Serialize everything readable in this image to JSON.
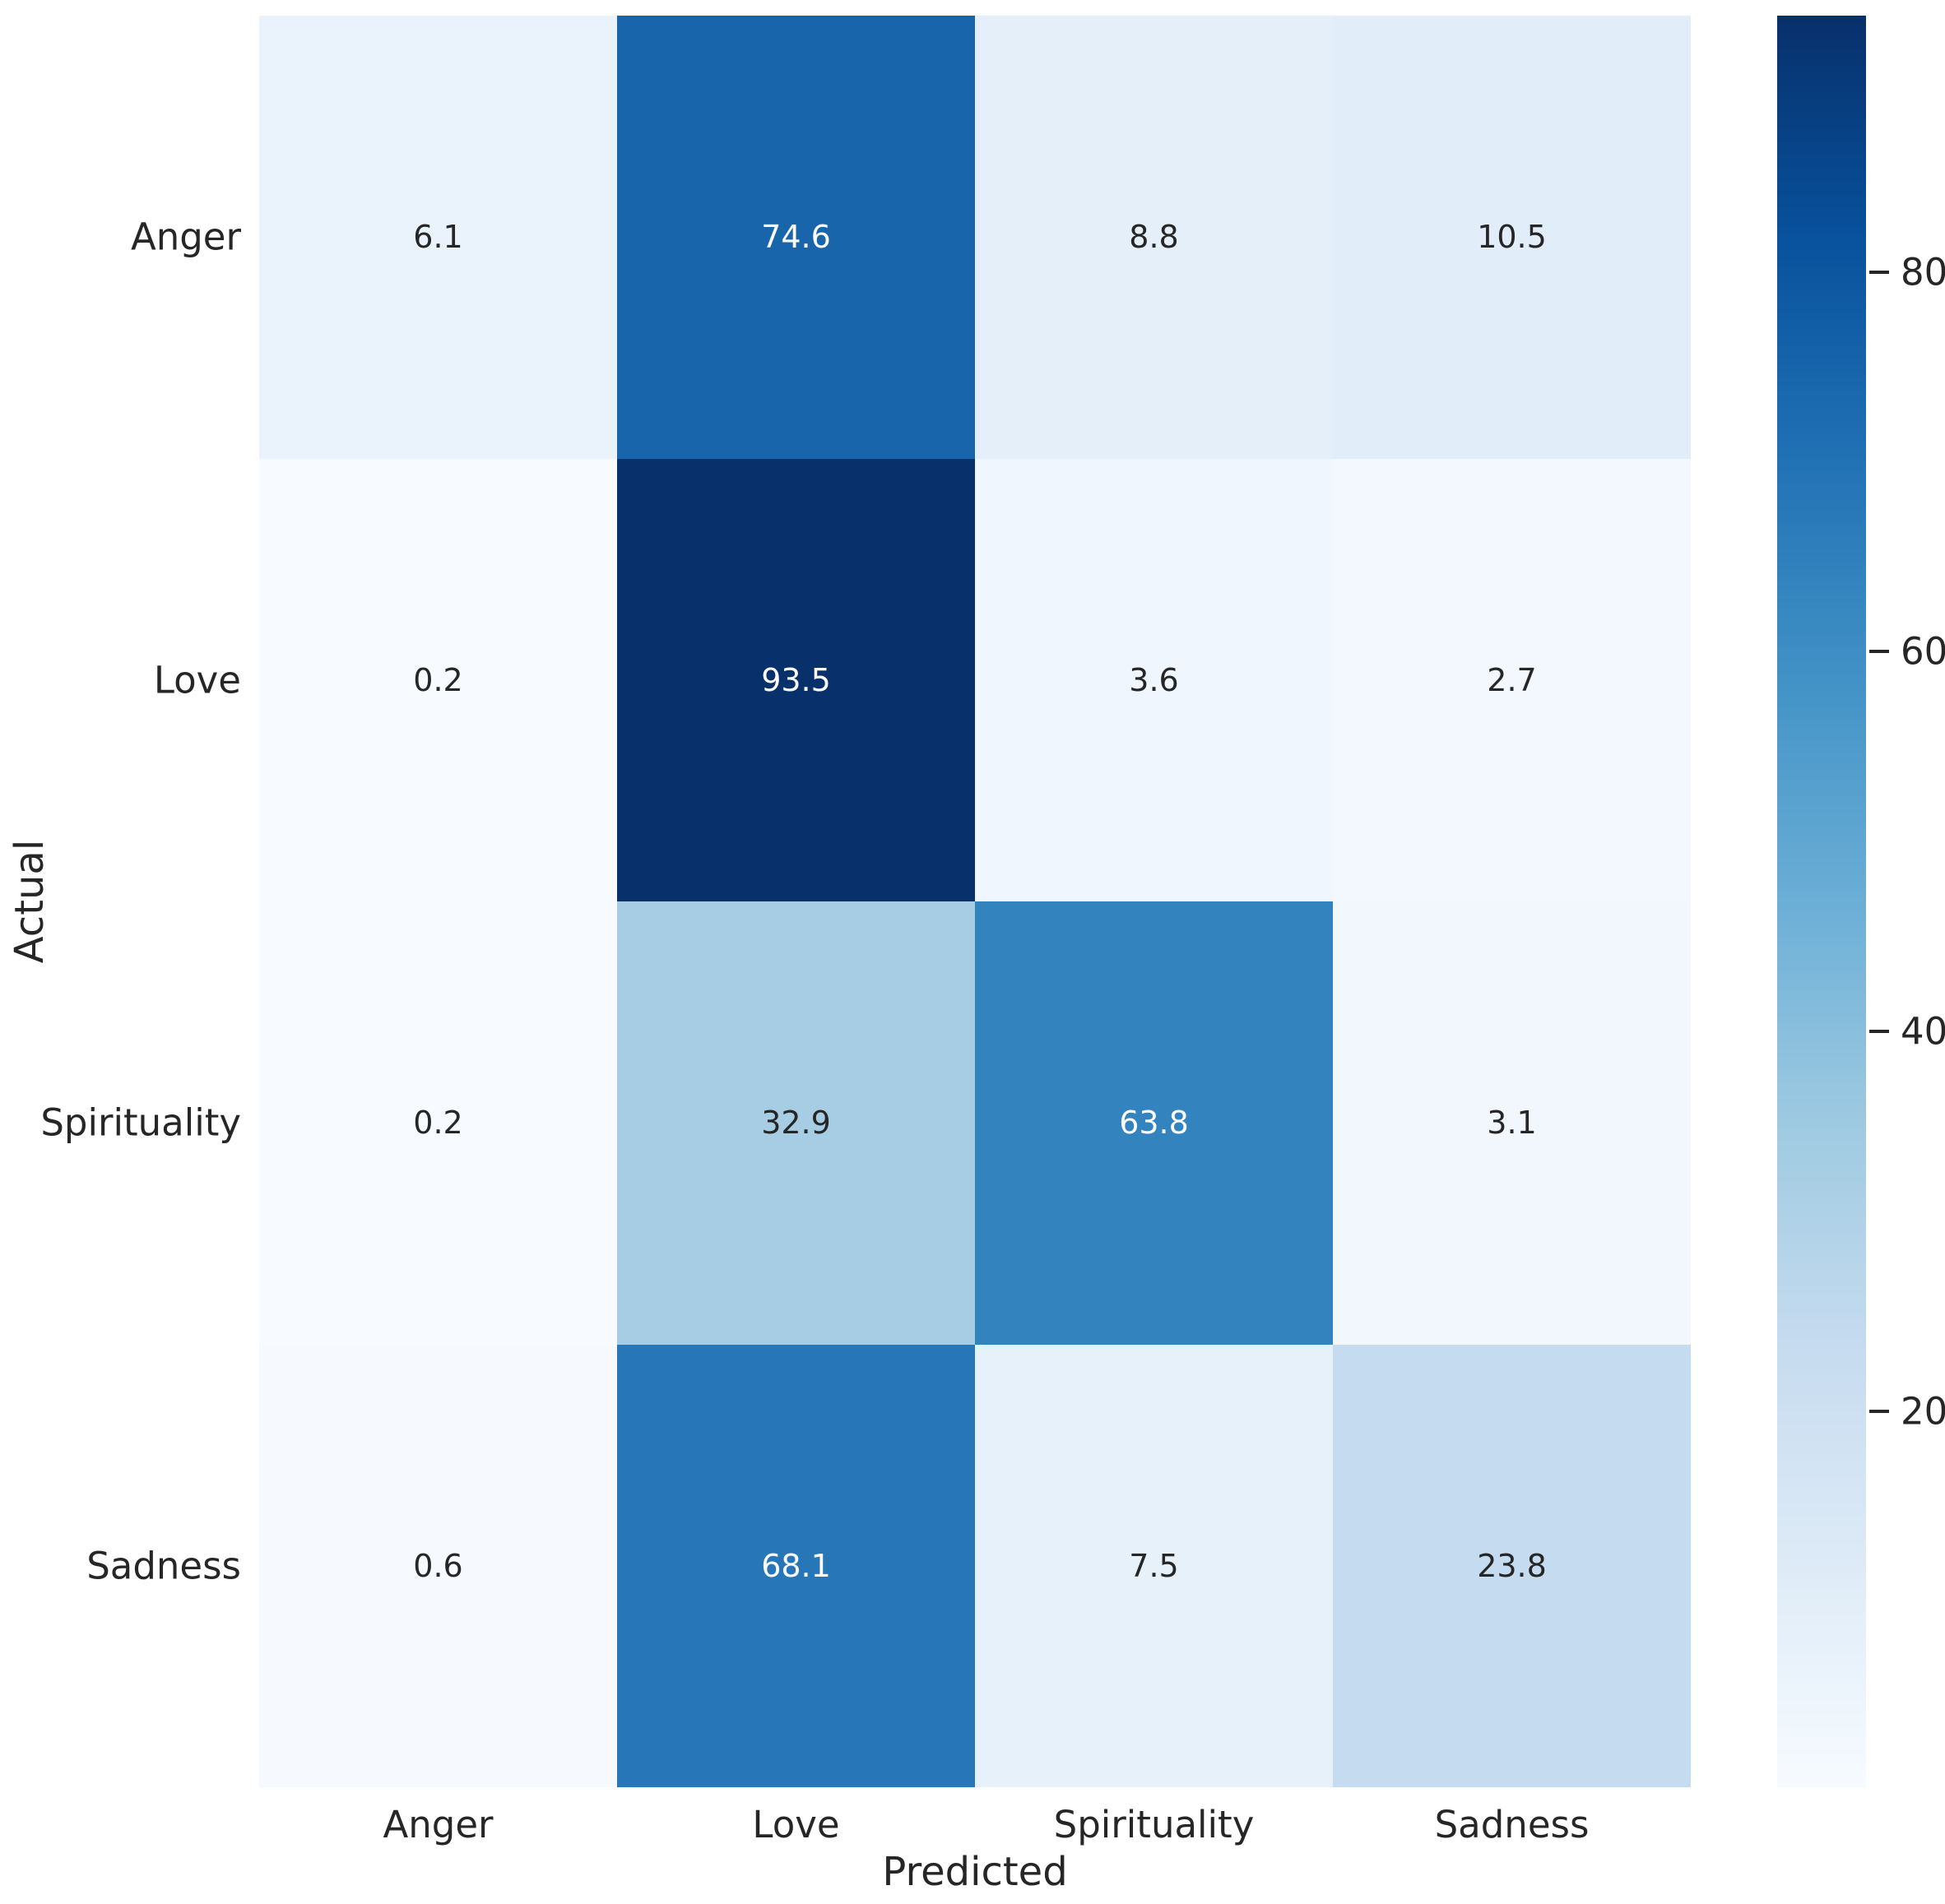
{
  "chart_data": {
    "type": "heatmap",
    "xlabel": "Predicted",
    "ylabel": "Actual",
    "x_categories": [
      "Anger",
      "Love",
      "Spirituality",
      "Sadness"
    ],
    "y_categories": [
      "Anger",
      "Love",
      "Spirituality",
      "Sadness"
    ],
    "values": [
      [
        6.1,
        74.6,
        8.8,
        10.5
      ],
      [
        0.2,
        93.5,
        3.6,
        2.7
      ],
      [
        0.2,
        32.9,
        63.8,
        3.1
      ],
      [
        0.6,
        68.1,
        7.5,
        23.8
      ]
    ],
    "vmin": 0.2,
    "vmax": 93.5,
    "colormap": "Blues",
    "colormap_stops": [
      "#f7fbff",
      "#deebf7",
      "#c6dbef",
      "#9ecae1",
      "#6baed6",
      "#4292c6",
      "#2171b5",
      "#08519c",
      "#08306b"
    ],
    "cell_colors": [
      [
        "#eaf3fb",
        "#1865ac",
        "#e5effa",
        "#e1edf8"
      ],
      [
        "#f7fbff",
        "#08306b",
        "#f0f6fd",
        "#f2f8fd"
      ],
      [
        "#f7fbff",
        "#a6cde4",
        "#3383be",
        "#f1f7fd"
      ],
      [
        "#f6faff",
        "#2777b8",
        "#e7f1fa",
        "#c5dbef"
      ]
    ],
    "cell_text_colors": [
      [
        "#262626",
        "#ffffff",
        "#262626",
        "#262626"
      ],
      [
        "#262626",
        "#ffffff",
        "#262626",
        "#262626"
      ],
      [
        "#262626",
        "#262626",
        "#ffffff",
        "#262626"
      ],
      [
        "#262626",
        "#ffffff",
        "#262626",
        "#262626"
      ]
    ],
    "colorbar_ticks": [
      20,
      40,
      60,
      80
    ],
    "legend_position": "right-colorbar",
    "grid": false
  },
  "colors": {
    "background": "#ffffff",
    "text": "#262626",
    "tick": "#262626"
  }
}
